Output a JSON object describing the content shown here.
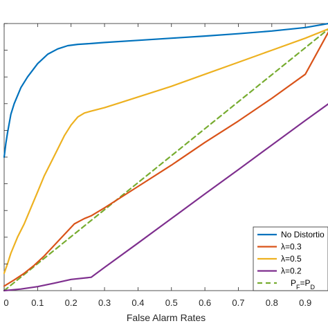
{
  "chart_data": {
    "type": "line",
    "title": "",
    "xlabel": "False Alarm Rates",
    "ylabel": "",
    "xlim": [
      0,
      0.97
    ],
    "ylim": [
      0,
      1.0
    ],
    "xticks": [
      0,
      0.1,
      0.2,
      0.3,
      0.4,
      0.5,
      0.6,
      0.7,
      0.8,
      0.9
    ],
    "xtick_labels": [
      "0",
      "0.1",
      "0.2",
      "0.3",
      "0.4",
      "0.5",
      "0.6",
      "0.7",
      "0.8",
      "0.9"
    ],
    "yticks": [
      0.1,
      0.2,
      0.3,
      0.4,
      0.5,
      0.6,
      0.7,
      0.8,
      0.9,
      1.0
    ],
    "grid": false,
    "legend": {
      "placement": "bottom-right",
      "entries": [
        {
          "key": "no_distortion",
          "label": "No Distortio"
        },
        {
          "key": "lambda_03",
          "label": "λ=0.3"
        },
        {
          "key": "lambda_05",
          "label": "λ=0.5"
        },
        {
          "key": "lambda_02",
          "label": "λ=0.2"
        },
        {
          "key": "pf_pd",
          "label": "P",
          "sub1": "F",
          "mid": "=P",
          "sub2": "D"
        }
      ]
    },
    "series": [
      {
        "key": "no_distortion",
        "color": "#0072BD",
        "dash": "solid",
        "x": [
          0,
          0.005,
          0.01,
          0.02,
          0.03,
          0.05,
          0.07,
          0.1,
          0.13,
          0.16,
          0.19,
          0.22,
          0.26,
          0.3,
          0.4,
          0.5,
          0.6,
          0.7,
          0.8,
          0.9,
          0.97
        ],
        "y": [
          0.5,
          0.55,
          0.59,
          0.66,
          0.7,
          0.76,
          0.8,
          0.85,
          0.885,
          0.905,
          0.917,
          0.922,
          0.925,
          0.929,
          0.937,
          0.945,
          0.953,
          0.962,
          0.972,
          0.985,
          1.0
        ]
      },
      {
        "key": "lambda_05",
        "color": "#EDB120",
        "dash": "solid",
        "x": [
          0,
          0.01,
          0.02,
          0.04,
          0.06,
          0.08,
          0.1,
          0.12,
          0.14,
          0.16,
          0.18,
          0.2,
          0.22,
          0.24,
          0.26,
          0.3,
          0.35,
          0.4,
          0.5,
          0.6,
          0.7,
          0.8,
          0.9,
          0.97
        ],
        "y": [
          0.065,
          0.1,
          0.14,
          0.2,
          0.25,
          0.31,
          0.37,
          0.43,
          0.48,
          0.53,
          0.58,
          0.62,
          0.65,
          0.665,
          0.672,
          0.685,
          0.705,
          0.725,
          0.765,
          0.81,
          0.855,
          0.9,
          0.945,
          0.98
        ]
      },
      {
        "key": "lambda_03",
        "color": "#D95319",
        "dash": "solid",
        "x": [
          0,
          0.03,
          0.06,
          0.09,
          0.12,
          0.15,
          0.18,
          0.21,
          0.24,
          0.26,
          0.3,
          0.4,
          0.5,
          0.6,
          0.7,
          0.8,
          0.9,
          0.97
        ],
        "y": [
          0.017,
          0.04,
          0.065,
          0.095,
          0.13,
          0.17,
          0.21,
          0.25,
          0.27,
          0.28,
          0.31,
          0.39,
          0.47,
          0.555,
          0.635,
          0.72,
          0.81,
          0.97
        ]
      },
      {
        "key": "lambda_02",
        "color": "#7E2F8E",
        "dash": "solid",
        "x": [
          0,
          0.05,
          0.1,
          0.15,
          0.2,
          0.26,
          0.3,
          0.4,
          0.5,
          0.6,
          0.7,
          0.8,
          0.9,
          0.97
        ],
        "y": [
          0.0,
          0.006,
          0.015,
          0.028,
          0.042,
          0.05,
          0.087,
          0.178,
          0.27,
          0.362,
          0.453,
          0.545,
          0.637,
          0.7
        ]
      },
      {
        "key": "pf_pd",
        "color": "#77AC30",
        "dash": "dashed",
        "x": [
          0,
          0.97
        ],
        "y": [
          0,
          0.98
        ]
      }
    ]
  }
}
